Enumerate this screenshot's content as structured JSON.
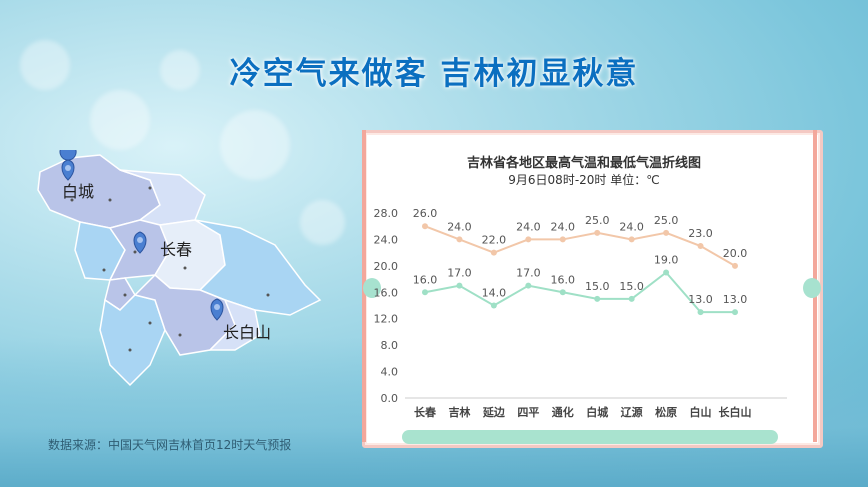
{
  "title": "冷空气来做客  吉林初显秋意",
  "source": "数据来源：中国天气网吉林首页12时天气预报",
  "map": {
    "labels": [
      "白城",
      "长春",
      "长白山"
    ],
    "pin_color": "#4a7fd1"
  },
  "chart_data": {
    "type": "line",
    "title": "吉林省各地区最高气温和最低气温折线图",
    "subtitle": "9月6日08时-20时    单位：℃",
    "categories": [
      "长春",
      "吉林",
      "延边",
      "四平",
      "通化",
      "白城",
      "辽源",
      "松原",
      "白山",
      "长白山"
    ],
    "ylim": [
      0,
      28
    ],
    "yticks": [
      "0.0",
      "4.0",
      "8.0",
      "12.0",
      "16.0",
      "20.0",
      "24.0",
      "28.0"
    ],
    "series": [
      {
        "values": [
          26,
          24,
          22,
          24,
          24,
          25,
          24,
          25,
          23,
          20
        ],
        "color": "#f2c7a9"
      },
      {
        "values": [
          16,
          17,
          14,
          17,
          16,
          15,
          15,
          19,
          13,
          13
        ],
        "color": "#9fe0c6"
      }
    ],
    "value_labels": {
      "high": [
        "26.0",
        "24.0",
        "22.0",
        "24.0",
        "24.0",
        "25.0",
        "24.0",
        "25.0",
        "23.0",
        "20.0"
      ],
      "low": [
        "16.0",
        "17.0",
        "14.0",
        "17.0",
        "16.0",
        "15.0",
        "15.0",
        "19.0",
        "13.0",
        "13.0"
      ]
    },
    "grid": false
  }
}
